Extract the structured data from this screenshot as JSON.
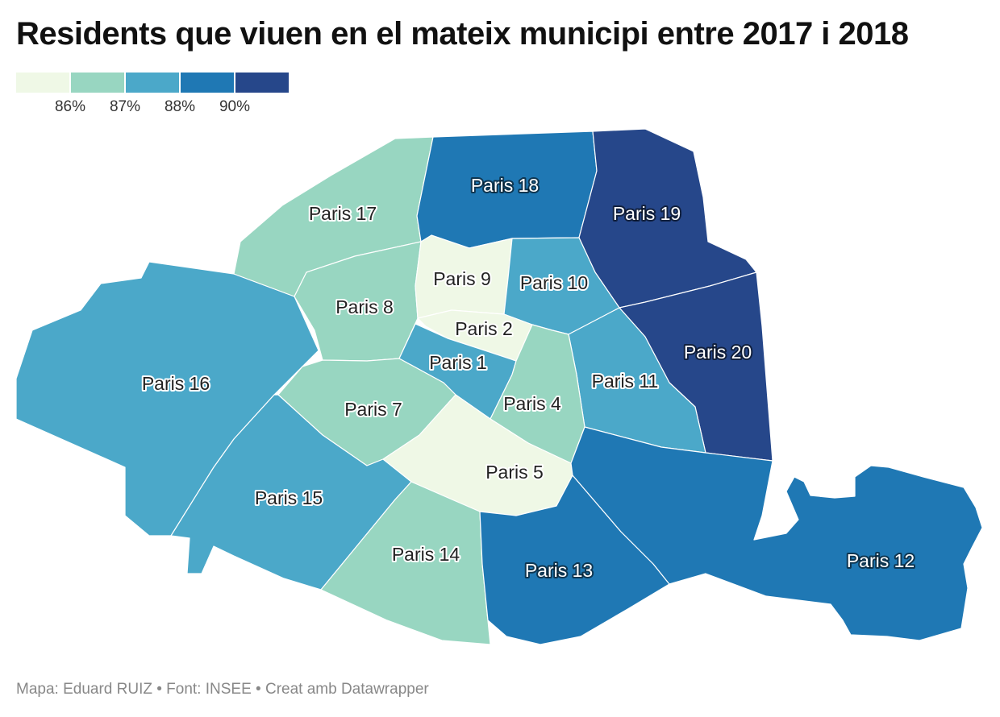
{
  "title": "Residents que viuen en el mateix municipi entre 2017 i 2018",
  "legend": {
    "colors": [
      "#eff8e6",
      "#98d6c1",
      "#4ba8c9",
      "#1f78b4",
      "#26478a"
    ],
    "ticks": [
      "86%",
      "87%",
      "88%",
      "90%"
    ]
  },
  "districts": [
    {
      "id": "paris-1",
      "label": "Paris 1",
      "color_class": 2
    },
    {
      "id": "paris-2",
      "label": "Paris 2",
      "color_class": 0
    },
    {
      "id": "paris-4",
      "label": "Paris 4",
      "color_class": 1
    },
    {
      "id": "paris-5",
      "label": "Paris 5",
      "color_class": 0
    },
    {
      "id": "paris-7",
      "label": "Paris 7",
      "color_class": 1
    },
    {
      "id": "paris-8",
      "label": "Paris 8",
      "color_class": 1
    },
    {
      "id": "paris-9",
      "label": "Paris 9",
      "color_class": 0
    },
    {
      "id": "paris-10",
      "label": "Paris 10",
      "color_class": 2
    },
    {
      "id": "paris-11",
      "label": "Paris 11",
      "color_class": 2
    },
    {
      "id": "paris-12",
      "label": "Paris 12",
      "color_class": 3
    },
    {
      "id": "paris-13",
      "label": "Paris 13",
      "color_class": 3
    },
    {
      "id": "paris-14",
      "label": "Paris 14",
      "color_class": 1
    },
    {
      "id": "paris-15",
      "label": "Paris 15",
      "color_class": 2
    },
    {
      "id": "paris-16",
      "label": "Paris 16",
      "color_class": 2
    },
    {
      "id": "paris-17",
      "label": "Paris 17",
      "color_class": 1
    },
    {
      "id": "paris-18",
      "label": "Paris 18",
      "color_class": 3
    },
    {
      "id": "paris-19",
      "label": "Paris 19",
      "color_class": 4
    },
    {
      "id": "paris-20",
      "label": "Paris 20",
      "color_class": 4
    }
  ],
  "footer": "Mapa: Eduard RUIZ • Font: INSEE • Creat amb Datawrapper"
}
